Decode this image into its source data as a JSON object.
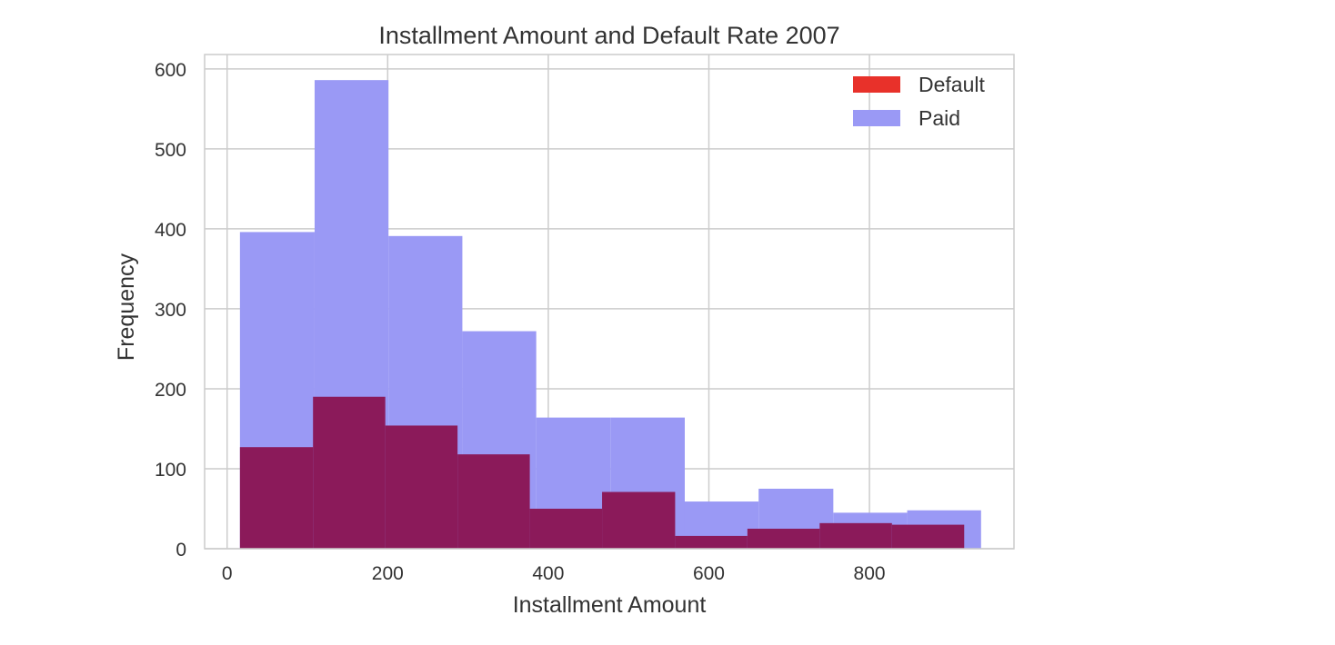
{
  "chart_data": {
    "type": "bar",
    "title": "Installment Amount and Default Rate 2007",
    "xlabel": "Installment Amount",
    "ylabel": "Frequency",
    "xlim": [
      -28,
      980
    ],
    "ylim": [
      0,
      618
    ],
    "xticks": [
      0,
      200,
      400,
      600,
      800
    ],
    "yticks": [
      0,
      100,
      200,
      300,
      400,
      500,
      600
    ],
    "grid": true,
    "legend_position": "top-right",
    "series": [
      {
        "name": "Default",
        "color": "#e8312a",
        "legend_color": "#e8312a",
        "draw_color": "#8b1a5a",
        "bins": [
          {
            "x0": 16,
            "x1": 107,
            "value": 127
          },
          {
            "x0": 107,
            "x1": 197,
            "value": 190
          },
          {
            "x0": 197,
            "x1": 287,
            "value": 154
          },
          {
            "x0": 287,
            "x1": 377,
            "value": 118
          },
          {
            "x0": 377,
            "x1": 467,
            "value": 50
          },
          {
            "x0": 467,
            "x1": 558,
            "value": 71
          },
          {
            "x0": 558,
            "x1": 648,
            "value": 16
          },
          {
            "x0": 648,
            "x1": 738,
            "value": 25
          },
          {
            "x0": 738,
            "x1": 828,
            "value": 32
          },
          {
            "x0": 828,
            "x1": 918,
            "value": 30
          }
        ]
      },
      {
        "name": "Paid",
        "color": "#9a99f5",
        "legend_color": "#9a99f5",
        "draw_color": "#9a99f5",
        "bins": [
          {
            "x0": 16,
            "x1": 109,
            "value": 396
          },
          {
            "x0": 109,
            "x1": 201,
            "value": 586
          },
          {
            "x0": 201,
            "x1": 293,
            "value": 391
          },
          {
            "x0": 293,
            "x1": 385,
            "value": 272
          },
          {
            "x0": 385,
            "x1": 478,
            "value": 164
          },
          {
            "x0": 478,
            "x1": 570,
            "value": 164
          },
          {
            "x0": 570,
            "x1": 662,
            "value": 59
          },
          {
            "x0": 662,
            "x1": 755,
            "value": 75
          },
          {
            "x0": 755,
            "x1": 847,
            "value": 45
          },
          {
            "x0": 847,
            "x1": 939,
            "value": 48
          }
        ]
      }
    ]
  }
}
